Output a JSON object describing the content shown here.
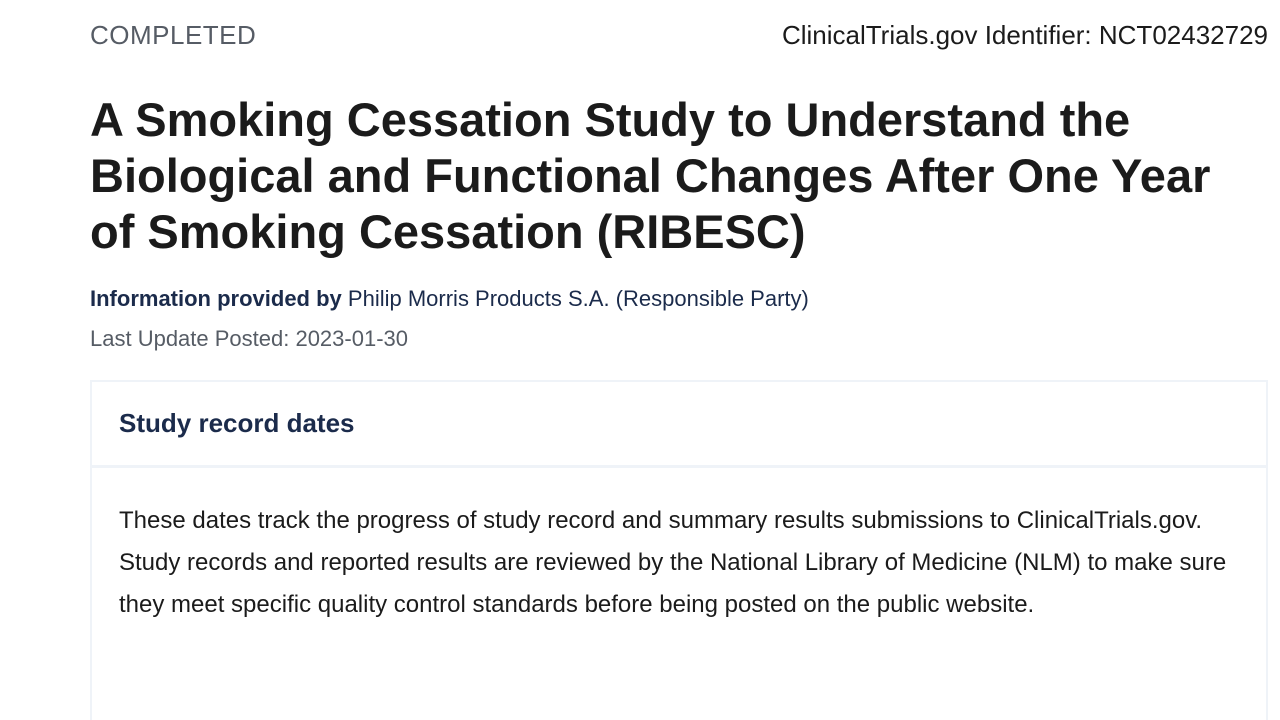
{
  "header": {
    "status": "COMPLETED",
    "identifier": "ClinicalTrials.gov Identifier: NCT02432729"
  },
  "study": {
    "title": "A Smoking Cessation Study to Understand the Biological and Functional Changes After One Year of Smoking Cessation (RIBESC)",
    "provided_by_label": "Information provided by",
    "provided_by_value": "Philip Morris Products S.A. (Responsible Party)",
    "last_update": "Last Update Posted: 2023-01-30"
  },
  "record_dates": {
    "heading": "Study record dates",
    "description": "These dates track the progress of study record and summary results submissions to ClinicalTrials.gov. Study records and reported results are reviewed by the National Library of Medicine (NLM) to make sure they meet specific quality control standards before being posted on the public website."
  },
  "colors": {
    "navy": "#1b2b4b",
    "muted": "#565c65",
    "border": "#eff3f8"
  }
}
